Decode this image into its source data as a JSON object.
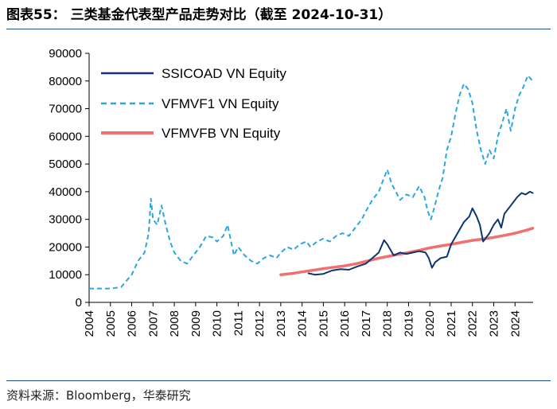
{
  "title": "图表55：  三类基金代表型产品走势对比（截至 2024-10-31）",
  "source": "资料来源：Bloomberg，华泰研究",
  "chart_data": {
    "type": "line",
    "title": "图表55：  三类基金代表型产品走势对比（截至 2024-10-31）",
    "xlabel": "",
    "ylabel": "",
    "xlim": [
      2004.0,
      2024.85
    ],
    "ylim": [
      0,
      90000
    ],
    "y_ticks": [
      0,
      10000,
      20000,
      30000,
      40000,
      50000,
      60000,
      70000,
      80000,
      90000
    ],
    "y_tick_labels": [
      "0",
      "10000",
      "20000",
      "30000",
      "40000",
      "50000",
      "60000",
      "70000",
      "80000",
      "90000"
    ],
    "x_ticks": [
      2004,
      2005,
      2006,
      2007,
      2008,
      2009,
      2010,
      2011,
      2012,
      2013,
      2014,
      2015,
      2016,
      2017,
      2018,
      2019,
      2020,
      2021,
      2022,
      2023,
      2024
    ],
    "x_tick_labels": [
      "2004",
      "2005",
      "2006",
      "2007",
      "2008",
      "2009",
      "2010",
      "2011",
      "2012",
      "2013",
      "2014",
      "2015",
      "2016",
      "2017",
      "2018",
      "2019",
      "2020",
      "2021",
      "2022",
      "2023",
      "2024"
    ],
    "legend_position": "top-left",
    "series": [
      {
        "name": "SSICOAD VN Equity",
        "color": "#0d3570",
        "style": "solid",
        "x": [
          2014.3,
          2014.6,
          2015.0,
          2015.4,
          2015.8,
          2016.2,
          2016.6,
          2017.0,
          2017.3,
          2017.6,
          2017.85,
          2018.0,
          2018.3,
          2018.6,
          2018.9,
          2019.2,
          2019.5,
          2019.8,
          2019.95,
          2020.1,
          2020.25,
          2020.5,
          2020.8,
          2021.0,
          2021.3,
          2021.6,
          2021.85,
          2022.0,
          2022.2,
          2022.35,
          2022.5,
          2022.8,
          2023.0,
          2023.2,
          2023.35,
          2023.5,
          2023.7,
          2023.9,
          2024.1,
          2024.3,
          2024.5,
          2024.7,
          2024.83
        ],
        "values": [
          10500,
          10000,
          10300,
          11500,
          12000,
          11800,
          13000,
          14000,
          16000,
          18000,
          22500,
          21000,
          17000,
          18000,
          17500,
          18000,
          18500,
          18000,
          16000,
          12500,
          14500,
          16000,
          16500,
          21000,
          25000,
          29000,
          31000,
          34000,
          31000,
          28000,
          22000,
          25000,
          28000,
          30000,
          27000,
          32000,
          34000,
          36000,
          38000,
          39500,
          39000,
          40000,
          39500
        ]
      },
      {
        "name": "VFMVF1 VN Equity",
        "color": "#2aa7e0",
        "style": "dashed",
        "x": [
          2004.0,
          2004.5,
          2005.0,
          2005.5,
          2006.0,
          2006.3,
          2006.6,
          2006.8,
          2006.9,
          2007.0,
          2007.2,
          2007.4,
          2007.6,
          2007.8,
          2008.0,
          2008.3,
          2008.6,
          2008.9,
          2009.2,
          2009.5,
          2009.8,
          2010.0,
          2010.3,
          2010.5,
          2010.8,
          2011.0,
          2011.3,
          2011.6,
          2011.9,
          2012.2,
          2012.5,
          2012.8,
          2013.0,
          2013.3,
          2013.6,
          2013.9,
          2014.2,
          2014.4,
          2014.7,
          2015.0,
          2015.3,
          2015.6,
          2015.9,
          2016.2,
          2016.5,
          2016.8,
          2017.0,
          2017.3,
          2017.6,
          2017.8,
          2018.0,
          2018.2,
          2018.4,
          2018.6,
          2018.9,
          2019.2,
          2019.5,
          2019.75,
          2019.9,
          2020.05,
          2020.2,
          2020.4,
          2020.6,
          2020.8,
          2021.0,
          2021.2,
          2021.4,
          2021.6,
          2021.8,
          2022.0,
          2022.2,
          2022.4,
          2022.6,
          2022.8,
          2023.0,
          2023.2,
          2023.4,
          2023.6,
          2023.8,
          2024.0,
          2024.2,
          2024.4,
          2024.6,
          2024.83
        ],
        "values": [
          5000,
          5000,
          5000,
          5500,
          10000,
          15000,
          18000,
          25000,
          37500,
          30000,
          28000,
          35000,
          28000,
          22000,
          18000,
          15000,
          14000,
          17000,
          20000,
          24000,
          23500,
          22000,
          24000,
          28000,
          17000,
          20000,
          17000,
          15000,
          14000,
          16000,
          17000,
          16000,
          18000,
          20000,
          19000,
          21000,
          22000,
          20000,
          22000,
          23000,
          22000,
          24000,
          25000,
          24000,
          27000,
          30000,
          33000,
          37000,
          40000,
          44000,
          48000,
          43000,
          40000,
          37000,
          39000,
          38000,
          42000,
          38000,
          33000,
          30000,
          34000,
          40000,
          45000,
          55000,
          60000,
          68000,
          75000,
          79000,
          77000,
          72000,
          62000,
          55000,
          50000,
          55000,
          52000,
          60000,
          65000,
          70000,
          62000,
          70000,
          75000,
          78000,
          82000,
          80000
        ]
      },
      {
        "name": "VFMVFB VN Equity",
        "color": "#f16f6f",
        "style": "solid",
        "x": [
          2013.0,
          2013.5,
          2014.0,
          2014.5,
          2015.0,
          2015.5,
          2016.0,
          2016.5,
          2017.0,
          2017.5,
          2018.0,
          2018.5,
          2019.0,
          2019.5,
          2020.0,
          2020.5,
          2021.0,
          2021.5,
          2022.0,
          2022.5,
          2023.0,
          2023.5,
          2024.0,
          2024.5,
          2024.83
        ],
        "values": [
          10000,
          10400,
          11000,
          11600,
          12200,
          12700,
          13200,
          13900,
          14800,
          15800,
          16600,
          17300,
          18000,
          18800,
          19700,
          20400,
          21000,
          21700,
          22400,
          22900,
          23500,
          24200,
          25000,
          26000,
          26800
        ]
      }
    ]
  }
}
